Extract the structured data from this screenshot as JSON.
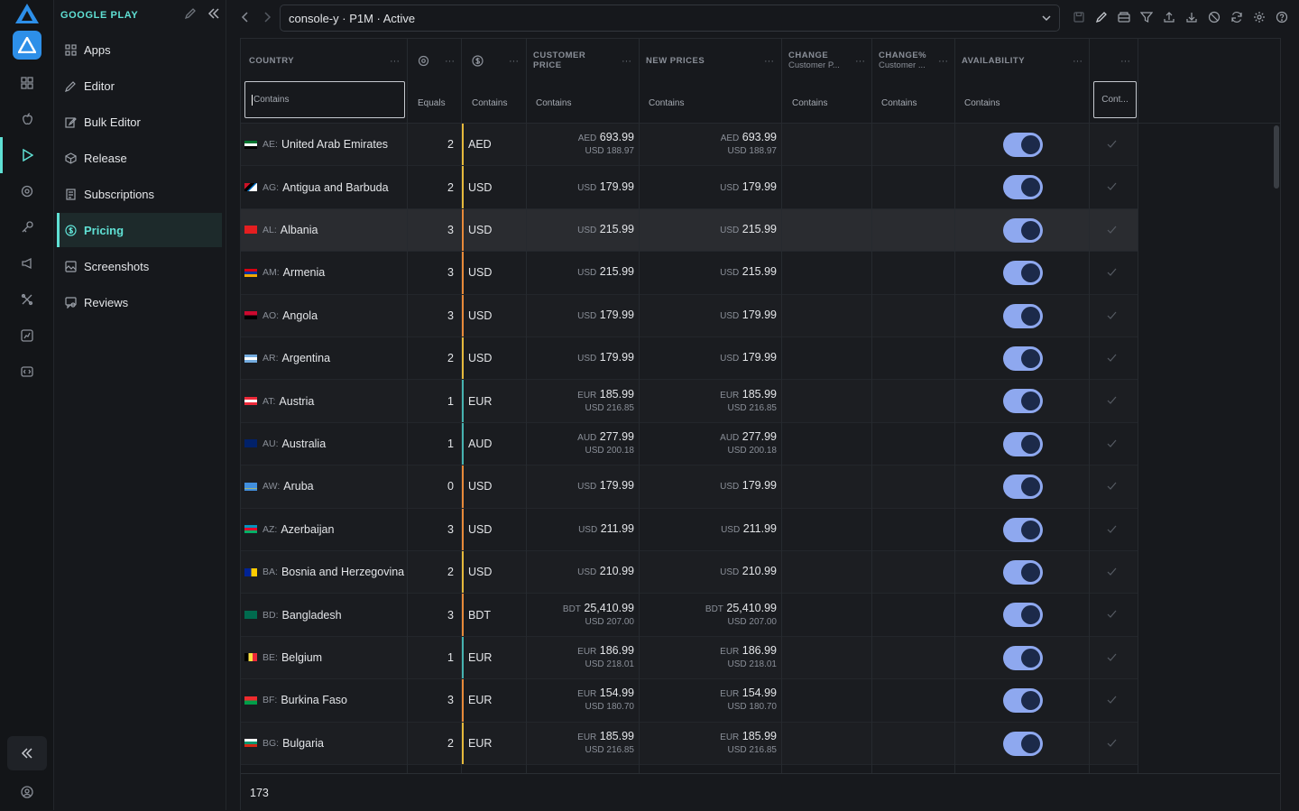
{
  "sidebar": {
    "title": "GOOGLE PLAY",
    "items": [
      {
        "label": "Apps",
        "icon": "apps-icon"
      },
      {
        "label": "Editor",
        "icon": "pencil-icon"
      },
      {
        "label": "Bulk Editor",
        "icon": "bulk-edit-icon"
      },
      {
        "label": "Release",
        "icon": "package-icon"
      },
      {
        "label": "Subscriptions",
        "icon": "document-icon"
      },
      {
        "label": "Pricing",
        "icon": "dollar-circle-icon",
        "active": true
      },
      {
        "label": "Screenshots",
        "icon": "image-icon"
      },
      {
        "label": "Reviews",
        "icon": "review-icon"
      }
    ]
  },
  "header": {
    "selector_value": "console-y · P1M · Active"
  },
  "table": {
    "columns": {
      "country": "COUNTRY",
      "customer_price_1": "CUSTOMER",
      "customer_price_2": "PRICE",
      "new_prices": "NEW PRICES",
      "change": "CHANGE",
      "change_sub": "Customer P...",
      "change_pct": "CHANGE%",
      "change_pct_sub": "Customer ...",
      "availability": "AVAILABILITY"
    },
    "filters": {
      "country": "Contains",
      "priority": "Equals",
      "currency": "Contains",
      "customer_price": "Contains",
      "new_prices": "Contains",
      "change": "Contains",
      "change_pct": "Contains",
      "availability": "Contains",
      "last": "Cont..."
    },
    "rows": [
      {
        "code": "AE:",
        "name": "United Arab Emirates",
        "priority": "2",
        "currency": "AED",
        "cp_cur": "AED",
        "cp_val": "693.99",
        "cp_usd": "USD 188.97",
        "np_cur": "AED",
        "np_val": "693.99",
        "np_usd": "USD 188.97",
        "bar": "#e6b93c",
        "flag": "ae"
      },
      {
        "code": "AG:",
        "name": "Antigua and Barbuda",
        "priority": "2",
        "currency": "USD",
        "cp_cur": "USD",
        "cp_val": "179.99",
        "cp_usd": "",
        "np_cur": "USD",
        "np_val": "179.99",
        "np_usd": "",
        "bar": "#e6b93c",
        "flag": "ag"
      },
      {
        "code": "AL:",
        "name": "Albania",
        "priority": "3",
        "currency": "USD",
        "cp_cur": "USD",
        "cp_val": "215.99",
        "cp_usd": "",
        "np_cur": "USD",
        "np_val": "215.99",
        "np_usd": "",
        "bar": "#e88a3a",
        "flag": "al",
        "hl": true
      },
      {
        "code": "AM:",
        "name": "Armenia",
        "priority": "3",
        "currency": "USD",
        "cp_cur": "USD",
        "cp_val": "215.99",
        "cp_usd": "",
        "np_cur": "USD",
        "np_val": "215.99",
        "np_usd": "",
        "bar": "#e88a3a",
        "flag": "am"
      },
      {
        "code": "AO:",
        "name": "Angola",
        "priority": "3",
        "currency": "USD",
        "cp_cur": "USD",
        "cp_val": "179.99",
        "cp_usd": "",
        "np_cur": "USD",
        "np_val": "179.99",
        "np_usd": "",
        "bar": "#e88a3a",
        "flag": "ao"
      },
      {
        "code": "AR:",
        "name": "Argentina",
        "priority": "2",
        "currency": "USD",
        "cp_cur": "USD",
        "cp_val": "179.99",
        "cp_usd": "",
        "np_cur": "USD",
        "np_val": "179.99",
        "np_usd": "",
        "bar": "#e6b93c",
        "flag": "ar"
      },
      {
        "code": "AT:",
        "name": "Austria",
        "priority": "1",
        "currency": "EUR",
        "cp_cur": "EUR",
        "cp_val": "185.99",
        "cp_usd": "USD 216.85",
        "np_cur": "EUR",
        "np_val": "185.99",
        "np_usd": "USD 216.85",
        "bar": "#46b3b0",
        "flag": "at"
      },
      {
        "code": "AU:",
        "name": "Australia",
        "priority": "1",
        "currency": "AUD",
        "cp_cur": "AUD",
        "cp_val": "277.99",
        "cp_usd": "USD 200.18",
        "np_cur": "AUD",
        "np_val": "277.99",
        "np_usd": "USD 200.18",
        "bar": "#46b3b0",
        "flag": "au"
      },
      {
        "code": "AW:",
        "name": "Aruba",
        "priority": "0",
        "currency": "USD",
        "cp_cur": "USD",
        "cp_val": "179.99",
        "cp_usd": "",
        "np_cur": "USD",
        "np_val": "179.99",
        "np_usd": "",
        "bar": "#e88a3a",
        "flag": "aw"
      },
      {
        "code": "AZ:",
        "name": "Azerbaijan",
        "priority": "3",
        "currency": "USD",
        "cp_cur": "USD",
        "cp_val": "211.99",
        "cp_usd": "",
        "np_cur": "USD",
        "np_val": "211.99",
        "np_usd": "",
        "bar": "#e88a3a",
        "flag": "az"
      },
      {
        "code": "BA:",
        "name": "Bosnia and Herzegovina",
        "priority": "2",
        "currency": "USD",
        "cp_cur": "USD",
        "cp_val": "210.99",
        "cp_usd": "",
        "np_cur": "USD",
        "np_val": "210.99",
        "np_usd": "",
        "bar": "#e6b93c",
        "flag": "ba"
      },
      {
        "code": "BD:",
        "name": "Bangladesh",
        "priority": "3",
        "currency": "BDT",
        "cp_cur": "BDT",
        "cp_val": "25,410.99",
        "cp_usd": "USD 207.00",
        "np_cur": "BDT",
        "np_val": "25,410.99",
        "np_usd": "USD 207.00",
        "bar": "#e88a3a",
        "flag": "bd"
      },
      {
        "code": "BE:",
        "name": "Belgium",
        "priority": "1",
        "currency": "EUR",
        "cp_cur": "EUR",
        "cp_val": "186.99",
        "cp_usd": "USD 218.01",
        "np_cur": "EUR",
        "np_val": "186.99",
        "np_usd": "USD 218.01",
        "bar": "#46b3b0",
        "flag": "be"
      },
      {
        "code": "BF:",
        "name": "Burkina Faso",
        "priority": "3",
        "currency": "EUR",
        "cp_cur": "EUR",
        "cp_val": "154.99",
        "cp_usd": "USD 180.70",
        "np_cur": "EUR",
        "np_val": "154.99",
        "np_usd": "USD 180.70",
        "bar": "#e88a3a",
        "flag": "bf"
      },
      {
        "code": "BG:",
        "name": "Bulgaria",
        "priority": "2",
        "currency": "EUR",
        "cp_cur": "EUR",
        "cp_val": "185.99",
        "cp_usd": "USD 216.85",
        "np_cur": "EUR",
        "np_val": "185.99",
        "np_usd": "USD 216.85",
        "bar": "#e6b93c",
        "flag": "bg"
      }
    ],
    "footer_count": "173"
  }
}
